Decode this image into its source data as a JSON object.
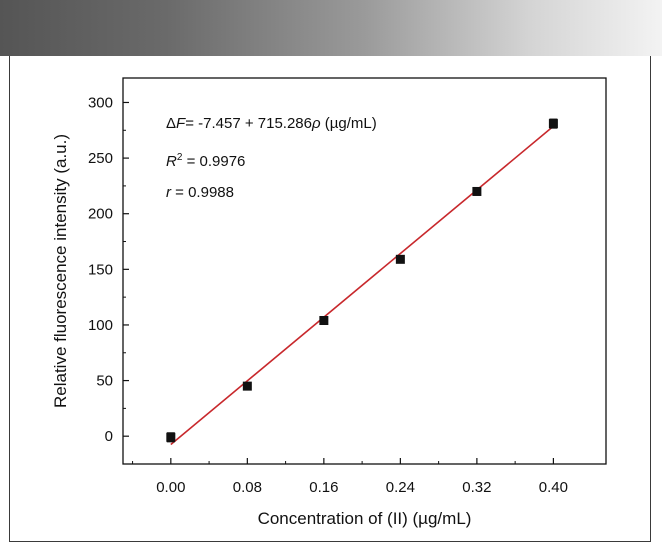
{
  "chart_data": {
    "type": "scatter",
    "title": "",
    "xlabel": "Concentration of (II) (µg/mL)",
    "ylabel": "Relative fluorescence intensity (a.u.)",
    "xlim": [
      -0.05,
      0.455
    ],
    "ylim": [
      -25,
      322
    ],
    "xticks": [
      "0.00",
      "0.08",
      "0.16",
      "0.24",
      "0.32",
      "0.40"
    ],
    "xtick_values": [
      0.0,
      0.08,
      0.16,
      0.24,
      0.32,
      0.4
    ],
    "yticks": [
      "0",
      "50",
      "100",
      "150",
      "200",
      "250",
      "300"
    ],
    "ytick_values": [
      0,
      50,
      100,
      150,
      200,
      250,
      300
    ],
    "grid": false,
    "series": [
      {
        "x": [
          0.0,
          0.08,
          0.16,
          0.24,
          0.32,
          0.4
        ],
        "y": [
          -1,
          45,
          104,
          159,
          220,
          281
        ],
        "err": [
          4,
          2,
          2,
          2,
          2,
          4
        ],
        "marker": "square",
        "color": "#111111"
      }
    ],
    "fit_line": {
      "intercept": -7.457,
      "slope": 715.286,
      "x_range": [
        0.0,
        0.4
      ],
      "color": "#c8282c"
    },
    "annotations": {
      "equation_delta": "Δ",
      "equation_F": "F",
      "equation_body": "= -7.457 + 715.286",
      "equation_rho": "ρ",
      "equation_unit": " (µg/mL)",
      "r2_symbol": "R",
      "r2_superscript": "2",
      "r2_value": " = 0.9976",
      "r_symbol": "r",
      "r_value": " = 0.9988"
    }
  }
}
